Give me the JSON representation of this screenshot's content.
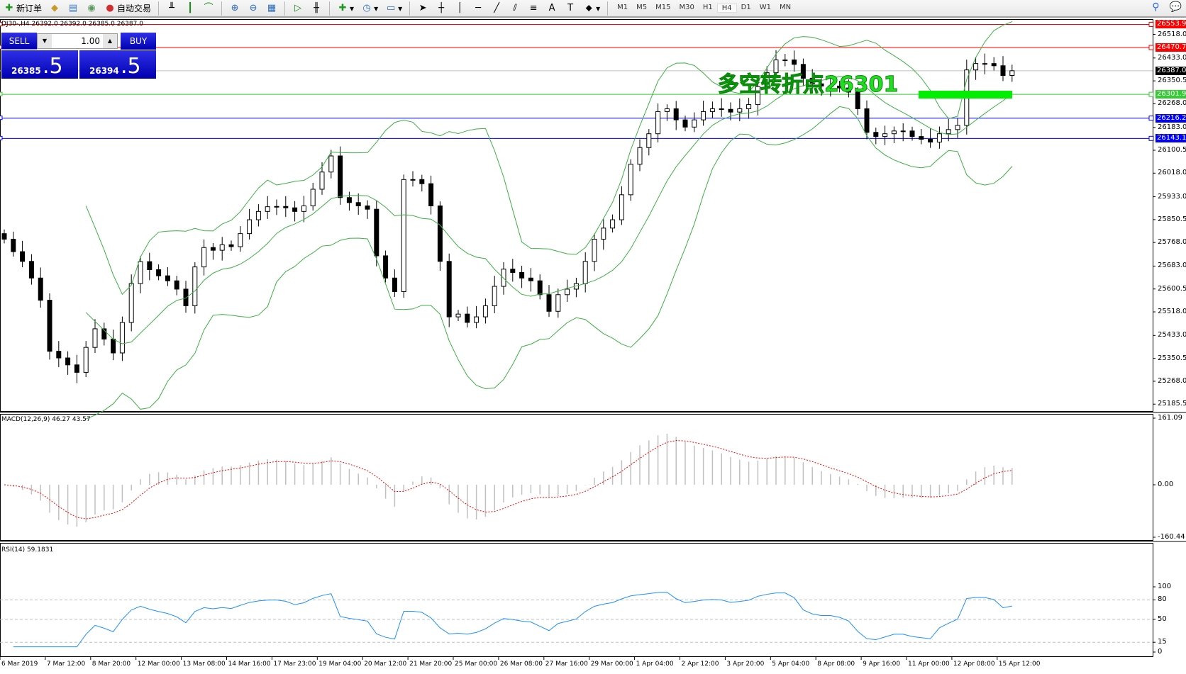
{
  "toolbar": {
    "new_order": "新订单",
    "auto_trading": "自动交易",
    "timeframes": [
      "M1",
      "M5",
      "M15",
      "M30",
      "H1",
      "H4",
      "D1",
      "W1",
      "MN"
    ],
    "active_timeframe": "H4",
    "icons": [
      "new-order-icon",
      "market-watch-icon",
      "navigator-icon",
      "signal-icon",
      "auto-trading-icon",
      "bar-chart-icon",
      "candlestick-icon",
      "line-chart-icon",
      "zoom-in-icon",
      "zoom-out-icon",
      "tile-windows-icon",
      "autoscroll-icon",
      "chart-shift-icon",
      "indicators-icon",
      "periods-icon",
      "templates-icon",
      "cursor-icon",
      "crosshair-icon",
      "vertical-line-icon",
      "horizontal-line-icon",
      "trendline-icon",
      "equidistant-channel-icon",
      "fibonacci-icon",
      "text-icon",
      "text-label-icon",
      "arrows-icon",
      "search-icon",
      "chat-icon"
    ]
  },
  "chart": {
    "title": "DJ30-,H4  26392.0 26392.0 26385.0 26387.0",
    "annotation": "多空转折点26301",
    "annotation_color": "#22dd22",
    "price_ticks": [
      "26518.0",
      "26433.0",
      "26350.5",
      "26268.0",
      "26183.0",
      "26100.5",
      "26018.0",
      "25933.0",
      "25850.5",
      "25768.0",
      "25683.0",
      "25600.5",
      "25518.0",
      "25433.0",
      "25350.5",
      "25268.0",
      "25185.5"
    ],
    "levels": [
      {
        "price": "26553.9",
        "color": "#ff0000"
      },
      {
        "price": "26470.7",
        "color": "#ff0000"
      },
      {
        "price": "26387.0",
        "color": "#000000",
        "line": "#c0c0c0"
      },
      {
        "price": "26301.9",
        "color": "#33cc33"
      },
      {
        "price": "26216.2",
        "color": "#0000ff"
      },
      {
        "price": "26143.1",
        "color": "#0000ff"
      }
    ],
    "closes": [
      25780,
      25735,
      25700,
      25640,
      25560,
      25376,
      25352,
      25327,
      25300,
      25390,
      25457,
      25420,
      25370,
      25480,
      25620,
      25699,
      25670,
      25648,
      25630,
      25600,
      25540,
      25680,
      25750,
      25740,
      25760,
      25753,
      25800,
      25850,
      25880,
      25897,
      25898,
      25893,
      25880,
      25900,
      25960,
      26022,
      26080,
      25930,
      25912,
      25900,
      25888,
      25720,
      25640,
      25591,
      25995,
      25995,
      25980,
      25900,
      25700,
      25500,
      25510,
      25480,
      25500,
      25540,
      25610,
      25672,
      25660,
      25640,
      25630,
      25580,
      25520,
      25580,
      25600,
      25620,
      25700,
      25780,
      25820,
      25850,
      25940,
      26050,
      26110,
      26160,
      26240,
      26250,
      26210,
      26184,
      26210,
      26240,
      26250,
      26248,
      26238,
      26250,
      26265,
      26330,
      26380,
      26426,
      26426,
      26410,
      26360,
      26340,
      26332,
      26332,
      26325,
      26310,
      26250,
      26165,
      26150,
      26160,
      26170,
      26170,
      26150,
      26140,
      26130,
      26160,
      26175,
      26190,
      26390,
      26413,
      26413,
      26405,
      26370,
      26387
    ]
  },
  "trade_panel": {
    "sell": "SELL",
    "buy": "BUY",
    "lot": "1.00",
    "sell_price": "26385",
    "sell_big": ".5",
    "buy_price": "26394",
    "buy_big": ".5"
  },
  "macd": {
    "label": "MACD(12,26,9) 46.27 43.57",
    "ticks": [
      "161.09",
      "0.00",
      "-160.44"
    ]
  },
  "rsi": {
    "label": "RSI(14) 59.1831",
    "ticks": [
      "100",
      "80",
      "50",
      "15",
      "0"
    ]
  },
  "time_labels": [
    "6 Mar 2019",
    "7 Mar 12:00",
    "8 Mar 20:00",
    "12 Mar 00:00",
    "13 Mar 08:00",
    "14 Mar 16:00",
    "17 Mar 23:00",
    "19 Mar 04:00",
    "20 Mar 12:00",
    "21 Mar 20:00",
    "25 Mar 00:00",
    "26 Mar 08:00",
    "27 Mar 16:00",
    "29 Mar 00:00",
    "1 Apr 04:00",
    "2 Apr 12:00",
    "3 Apr 20:00",
    "5 Apr 04:00",
    "8 Apr 08:00",
    "9 Apr 16:00",
    "11 Apr 00:00",
    "12 Apr 08:00",
    "15 Apr 12:00"
  ]
}
